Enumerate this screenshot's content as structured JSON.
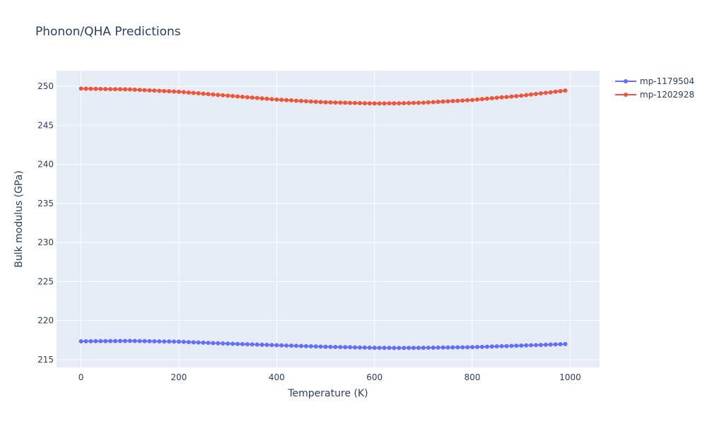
{
  "chart_data": {
    "type": "line",
    "title": "Phonon/QHA Predictions",
    "xlabel": "Temperature (K)",
    "ylabel": "Bulk modulus (GPa)",
    "xlim": [
      -50,
      1060
    ],
    "ylim": [
      214,
      252
    ],
    "x_ticks": [
      0,
      200,
      400,
      600,
      800,
      1000
    ],
    "y_ticks": [
      215,
      220,
      225,
      230,
      235,
      240,
      245,
      250
    ],
    "grid": true,
    "legend_position": "top-right",
    "colors": {
      "plot_bg": "#e5ecf6",
      "grid": "#ffffff",
      "text": "#2a3f5f"
    },
    "series": [
      {
        "name": "mp-1179504",
        "color": "#636efa",
        "x": [
          0,
          100,
          200,
          300,
          400,
          500,
          600,
          650,
          700,
          800,
          900,
          990
        ],
        "y": [
          217.35,
          217.4,
          217.3,
          217.05,
          216.85,
          216.65,
          216.52,
          216.5,
          216.52,
          216.6,
          216.8,
          217.0
        ]
      },
      {
        "name": "mp-1202928",
        "color": "#ef553b",
        "x": [
          0,
          100,
          200,
          300,
          400,
          500,
          600,
          650,
          700,
          800,
          900,
          990
        ],
        "y": [
          249.7,
          249.6,
          249.3,
          248.8,
          248.3,
          247.95,
          247.8,
          247.82,
          247.9,
          248.25,
          248.8,
          249.45
        ]
      }
    ]
  }
}
